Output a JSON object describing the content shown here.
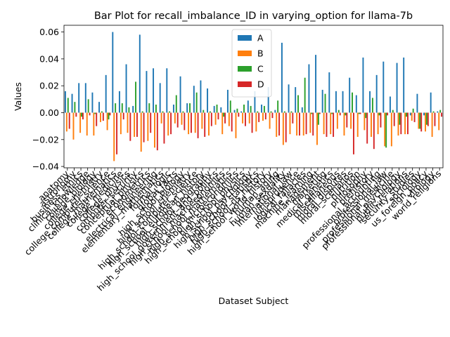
{
  "chart_data": {
    "type": "bar",
    "title": "Bar Plot for recall_imbalance_ID in varying_option for llama-7b",
    "xlabel": "Dataset Subject",
    "ylabel": "Values",
    "ylim": [
      -0.041,
      0.065
    ],
    "yticks": [
      -0.04,
      -0.02,
      0.0,
      0.02,
      0.04,
      0.06
    ],
    "ytick_labels": [
      "−0.04",
      "−0.02",
      "0.00",
      "0.02",
      "0.04",
      "0.06"
    ],
    "legend_position": "upper-center",
    "colors": [
      "#1f77b4",
      "#ff7f0e",
      "#2ca02c",
      "#d62728"
    ],
    "categories": [
      "anatomy",
      "astronomy",
      "business_ethics",
      "clinical_knowledge",
      "college_biology",
      "college_chemistry",
      "college_computer_science",
      "college_mathematics",
      "college_medicine",
      "college_physics",
      "computer_security",
      "conceptual_physics",
      "econometrics",
      "electrical_engineering",
      "elementary_mathematics",
      "formal_logic",
      "global_facts",
      "high_school_biology",
      "high_school_chemistry",
      "high_school_computer_science",
      "high_school_european_history",
      "high_school_geography",
      "high_school_government_and_politics",
      "high_school_macroeconomics",
      "high_school_mathematics",
      "high_school_microeconomics",
      "high_school_physics",
      "high_school_psychology",
      "high_school_statistics",
      "high_school_us_history",
      "high_school_world_history",
      "human_aging",
      "human_sexuality",
      "international_law",
      "jurisprudence",
      "logical_fallacies",
      "machine_learning",
      "management",
      "marketing",
      "medical_genetics",
      "miscellaneous",
      "moral_disputes",
      "moral_scenarios",
      "nutrition",
      "philosophy",
      "prehistory",
      "professional_accounting",
      "professional_law",
      "professional_medicine",
      "professional_psychology",
      "public_relations",
      "security_studies",
      "sociology",
      "us_foreign_policy",
      "virology",
      "world_religions"
    ],
    "series": [
      {
        "name": "A",
        "values": [
          0.016,
          0.014,
          0.022,
          0.022,
          0.015,
          0.008,
          0.028,
          0.06,
          0.016,
          0.036,
          0.005,
          0.058,
          0.031,
          0.033,
          0.022,
          0.033,
          0.006,
          0.027,
          0.007,
          0.02,
          0.024,
          0.018,
          0.005,
          0.004,
          0.017,
          0.002,
          0.001,
          0.009,
          0.016,
          0.006,
          0.019,
          0.002,
          0.052,
          0.021,
          0.019,
          0.004,
          0.036,
          0.043,
          0.017,
          0.03,
          0.016,
          0.016,
          0.026,
          0.013,
          0.041,
          0.016,
          0.028,
          0.038,
          0.012,
          0.037,
          0.041,
          -0.002,
          0.014,
          -0.002,
          0.015,
          0.001
        ]
      },
      {
        "name": "B",
        "values": [
          -0.014,
          -0.02,
          -0.015,
          -0.017,
          -0.017,
          -0.007,
          -0.013,
          -0.036,
          -0.016,
          -0.015,
          -0.018,
          -0.029,
          -0.021,
          -0.026,
          -0.008,
          -0.017,
          -0.008,
          -0.009,
          -0.016,
          -0.015,
          -0.012,
          -0.017,
          -0.009,
          -0.016,
          -0.01,
          -0.019,
          -0.008,
          -0.008,
          -0.014,
          -0.006,
          -0.012,
          -0.018,
          -0.024,
          -0.016,
          -0.017,
          -0.017,
          -0.015,
          -0.024,
          -0.016,
          -0.016,
          -0.012,
          -0.017,
          -0.012,
          -0.018,
          -0.013,
          -0.018,
          -0.016,
          -0.025,
          -0.025,
          -0.017,
          -0.016,
          -0.006,
          -0.012,
          -0.014,
          -0.018,
          -0.013
        ]
      },
      {
        "name": "C",
        "values": [
          0.011,
          0.008,
          -0.003,
          0.01,
          -0.001,
          0.001,
          -0.005,
          0.007,
          0.007,
          0.004,
          0.023,
          0.001,
          0.007,
          0.006,
          0.001,
          0.001,
          0.013,
          0.001,
          0.007,
          0.015,
          0.002,
          0.001,
          0.006,
          -0.003,
          0.009,
          0.003,
          0.006,
          0.005,
          0.001,
          0.005,
          0.001,
          0.009,
          0.001,
          0.001,
          0.013,
          0.026,
          -0.001,
          -0.009,
          0.014,
          -0.001,
          0.002,
          -0.002,
          0.015,
          -0.001,
          -0.004,
          0.011,
          -0.002,
          -0.026,
          0.002,
          -0.009,
          -0.003,
          0.003,
          -0.012,
          -0.009,
          0.001,
          0.002
        ]
      },
      {
        "name": "D",
        "values": [
          -0.012,
          -0.003,
          -0.005,
          -0.002,
          -0.01,
          -0.006,
          -0.002,
          -0.031,
          -0.005,
          -0.021,
          -0.018,
          -0.022,
          -0.015,
          -0.028,
          -0.023,
          -0.016,
          -0.011,
          -0.013,
          -0.015,
          -0.019,
          -0.018,
          -0.01,
          -0.005,
          -0.008,
          -0.014,
          -0.003,
          -0.01,
          -0.015,
          -0.007,
          -0.005,
          -0.004,
          -0.017,
          -0.022,
          -0.008,
          -0.017,
          -0.016,
          -0.017,
          -0.001,
          -0.018,
          -0.018,
          -0.002,
          -0.011,
          -0.031,
          -0.001,
          -0.023,
          -0.027,
          -0.011,
          -0.002,
          -0.01,
          -0.016,
          -0.016,
          -0.007,
          -0.014,
          -0.01,
          -0.01,
          -0.003
        ]
      }
    ]
  }
}
